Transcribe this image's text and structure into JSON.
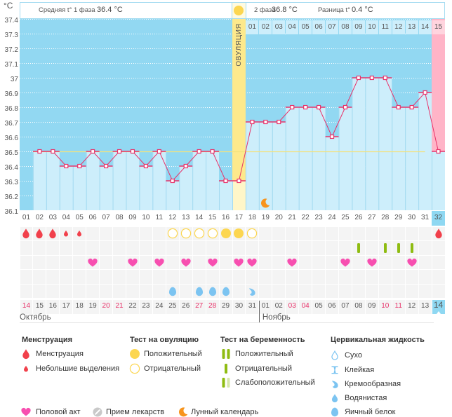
{
  "header": {
    "phase1_label": "Средняя t° 1 фаза",
    "phase1_value": "36.4 °C",
    "phase2_label": "2 фаза",
    "phase2_value": "36.8 °C",
    "diff_label": "Разница t°",
    "diff_value": "0.4 °C",
    "ovulation_label": "ОВУЛЯЦИЯ"
  },
  "chart_data": {
    "type": "line",
    "title": "",
    "xlabel": "",
    "ylabel": "°C",
    "ylim": [
      36.1,
      37.4
    ],
    "yticks": [
      "37.4",
      "37.3",
      "37.2",
      "37.1",
      "37",
      "36.9",
      "36.8",
      "36.7",
      "36.6",
      "36.5",
      "36.4",
      "36.3",
      "36.2",
      "36.1"
    ],
    "x": [
      "01",
      "02",
      "03",
      "04",
      "05",
      "06",
      "07",
      "08",
      "09",
      "10",
      "11",
      "12",
      "13",
      "14",
      "15",
      "16",
      "17",
      "18",
      "19",
      "20",
      "21",
      "22",
      "23",
      "24",
      "25",
      "26",
      "27",
      "28",
      "29",
      "30",
      "31",
      "32"
    ],
    "temperature": [
      null,
      36.5,
      36.5,
      36.4,
      36.4,
      36.5,
      36.4,
      36.5,
      36.5,
      36.4,
      36.5,
      36.3,
      36.4,
      36.5,
      36.5,
      36.3,
      36.3,
      36.7,
      36.7,
      36.7,
      36.8,
      36.8,
      36.8,
      36.6,
      36.8,
      37.0,
      37.0,
      37.0,
      36.8,
      36.8,
      36.9,
      36.5
    ],
    "coverline": 36.5,
    "coverline_range": [
      2,
      31
    ],
    "ovulation_day": 17,
    "highlight_day": 32,
    "phase2_start_day": 18,
    "phase2_labels": [
      "01",
      "02",
      "03",
      "04",
      "05",
      "06",
      "07",
      "08",
      "09",
      "10",
      "11",
      "12",
      "13",
      "14",
      "15"
    ],
    "grid": true
  },
  "dates": [
    {
      "label": "14",
      "weekend": true
    },
    {
      "label": "15",
      "weekend": false
    },
    {
      "label": "16",
      "weekend": false
    },
    {
      "label": "17",
      "weekend": false
    },
    {
      "label": "18",
      "weekend": false
    },
    {
      "label": "19",
      "weekend": false
    },
    {
      "label": "20",
      "weekend": true
    },
    {
      "label": "21",
      "weekend": true
    },
    {
      "label": "22",
      "weekend": false
    },
    {
      "label": "23",
      "weekend": false
    },
    {
      "label": "24",
      "weekend": false
    },
    {
      "label": "25",
      "weekend": false
    },
    {
      "label": "26",
      "weekend": false
    },
    {
      "label": "27",
      "weekend": true
    },
    {
      "label": "28",
      "weekend": true
    },
    {
      "label": "29",
      "weekend": false
    },
    {
      "label": "30",
      "weekend": false
    },
    {
      "label": "31",
      "weekend": false
    },
    {
      "label": "01",
      "weekend": false
    },
    {
      "label": "02",
      "weekend": false
    },
    {
      "label": "03",
      "weekend": true
    },
    {
      "label": "04",
      "weekend": true
    },
    {
      "label": "05",
      "weekend": false
    },
    {
      "label": "06",
      "weekend": false
    },
    {
      "label": "07",
      "weekend": false
    },
    {
      "label": "08",
      "weekend": false
    },
    {
      "label": "09",
      "weekend": false
    },
    {
      "label": "10",
      "weekend": true
    },
    {
      "label": "11",
      "weekend": true
    },
    {
      "label": "12",
      "weekend": false
    },
    {
      "label": "13",
      "weekend": false
    },
    {
      "label": "14",
      "weekend": false
    }
  ],
  "months": [
    {
      "label": "Октябрь",
      "start_day": 1
    },
    {
      "label": "Ноябрь",
      "start_day": 19
    }
  ],
  "events": {
    "menstruation": [
      1,
      2,
      3,
      32
    ],
    "spotting": [
      4,
      5
    ],
    "ovulation_test_positive": [
      16,
      17
    ],
    "ovulation_test_negative": [
      12,
      13,
      14,
      15,
      18
    ],
    "pregnancy_test_negative": [
      26,
      28,
      29,
      30
    ],
    "intercourse": [
      6,
      9,
      11,
      13,
      15,
      17,
      18,
      21,
      25,
      27,
      30
    ],
    "medication": [],
    "cervical_egg_white": [
      12,
      14,
      15,
      16
    ],
    "cervical_creamy": [
      18
    ],
    "moon": [
      19
    ]
  },
  "legend": {
    "menstruation": {
      "title": "Менструация",
      "items": [
        "Менструация",
        "Небольшие выделения"
      ]
    },
    "ovulation_test": {
      "title": "Тест на овуляцию",
      "items": [
        "Положительный",
        "Отрицательный"
      ]
    },
    "pregnancy_test": {
      "title": "Тест на беременность",
      "items": [
        "Положительный",
        "Отрицательный",
        "Слабоположительный"
      ]
    },
    "cervical_fluid": {
      "title": "Цервикальная жидкость",
      "items": [
        "Сухо",
        "Клейкая",
        "Кремообразная",
        "Водянистая",
        "Яичный белок"
      ]
    },
    "other": [
      "Половой акт",
      "Прием лекарств",
      "Лунный календарь"
    ]
  },
  "colors": {
    "plot_bg": "#92d8f2",
    "bar": "#cdeefb",
    "bar_separator": "#a3daf0",
    "gridline": "#ffffff",
    "ovulation_band": "#fde98c",
    "ovulation_bar": "#fff6c8",
    "current_day": "#ffb4c7",
    "current_day_cell": "#ffd4de",
    "line": "#e8336a",
    "coverline": "#f3e27c",
    "menstruation": "#f1404b",
    "ovulation_test": "#fcd650",
    "pregnancy_test": "#8fbc12",
    "pregnancy_test_light": "#d6e7aa",
    "intercourse": "#f74fb0",
    "cervical": "#7cc4f1",
    "medication": "#c9c9c9",
    "moon": "#f7941d",
    "weekend": "#e8336a",
    "cell_bg": "#f4f4f4",
    "highlight": "#8fd8f2"
  }
}
